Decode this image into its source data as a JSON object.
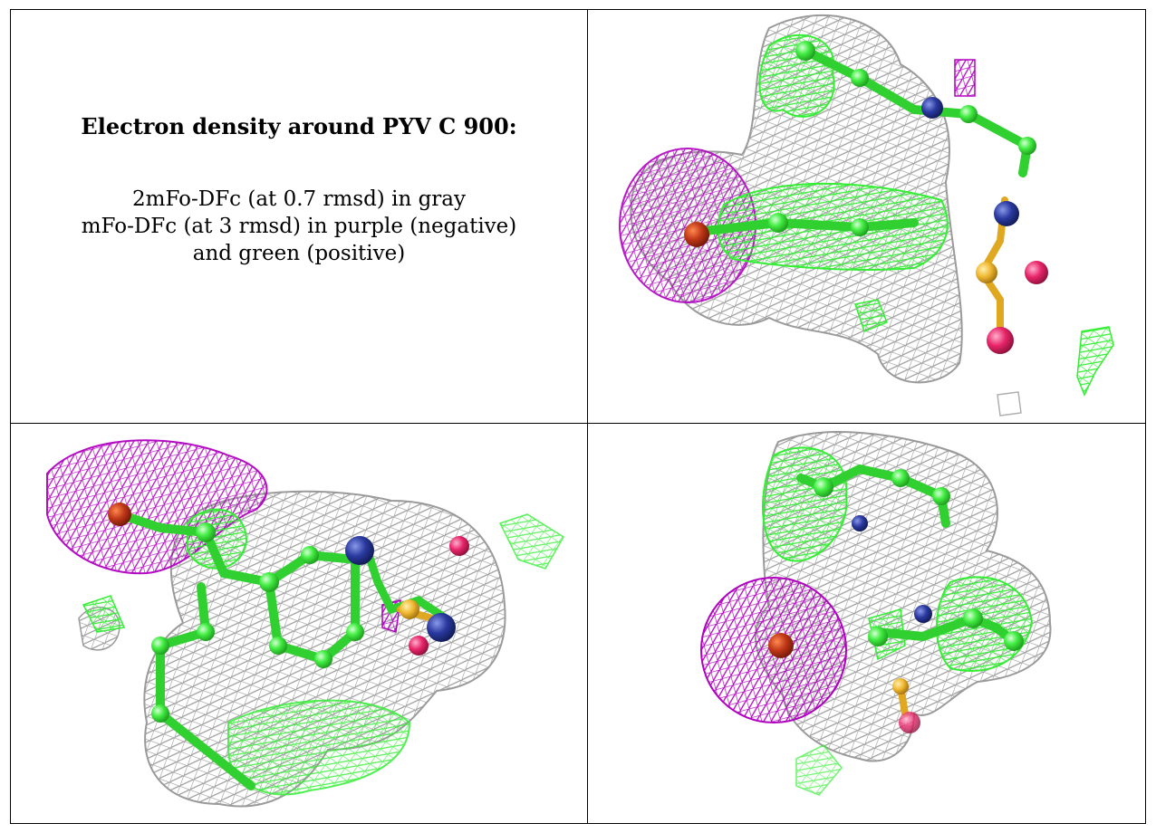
{
  "caption": {
    "title": "Electron density around PYV C 900:",
    "line1": "2mFo-DFc (at 0.7 rmsd) in gray",
    "line2": "mFo-DFc (at 3 rmsd) in purple (negative)",
    "line3": "and green (positive)"
  },
  "colors": {
    "map_2fofc": "#a0a0a0",
    "map_fofc_negative": "#b000c0",
    "map_fofc_positive": "#33ee33",
    "carbon": "#44ee44",
    "nitrogen": "#2a3aa0",
    "oxygen": "#e8256a",
    "sulfur": "#f0b830",
    "metal": "#c03818"
  },
  "panels": [
    {
      "name": "view-1",
      "position": "top-right"
    },
    {
      "name": "view-2",
      "position": "bottom-left"
    },
    {
      "name": "view-3",
      "position": "bottom-right"
    }
  ]
}
